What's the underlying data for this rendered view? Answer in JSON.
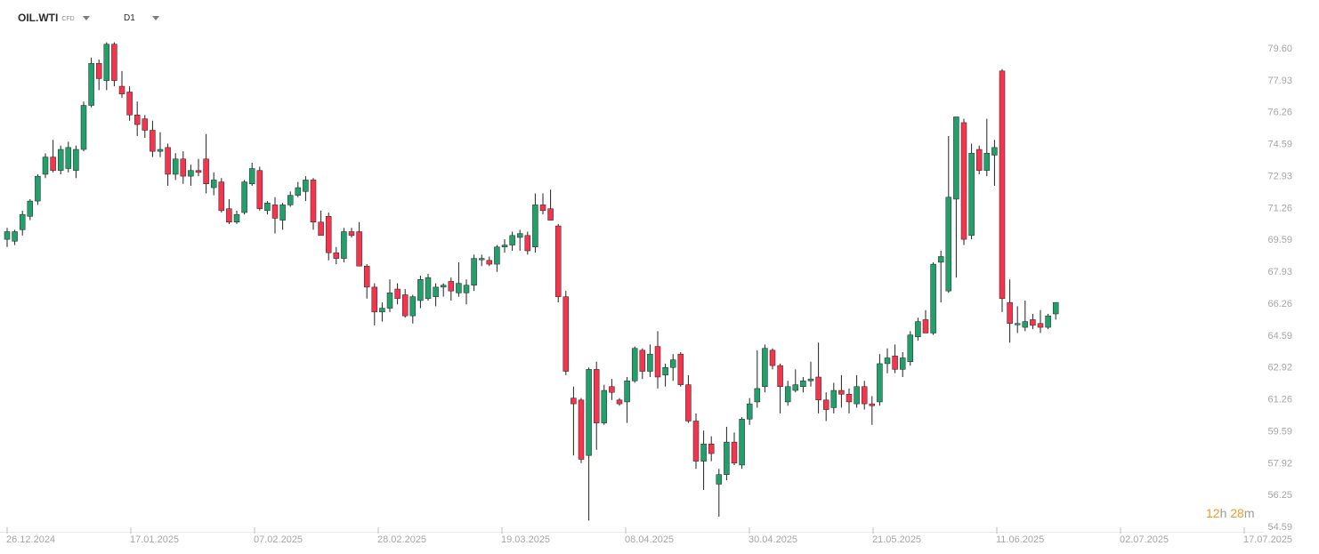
{
  "header": {
    "symbol": "OIL.WTI",
    "instrument_class": "CFD",
    "timeframe": "D1"
  },
  "countdown": {
    "hours": "12",
    "hours_unit": "h",
    "minutes": "28",
    "minutes_unit": "m"
  },
  "colors": {
    "up": "#22a06b",
    "down": "#f5344e",
    "axis_text": "#a6a6a6",
    "countdown": "#f29a2a"
  },
  "icons": [
    "symbol-dropdown-caret-icon",
    "timeframe-dropdown-caret-icon"
  ],
  "chart_data": {
    "type": "candlestick",
    "symbol": "OIL.WTI",
    "timeframe": "D1",
    "y_ticks": [
      "79.60",
      "77.93",
      "76.26",
      "74.59",
      "72.93",
      "71.26",
      "69.59",
      "67.93",
      "66.26",
      "64.59",
      "62.92",
      "61.26",
      "59.59",
      "57.92",
      "56.25",
      "54.59"
    ],
    "ylim": [
      54.59,
      79.6
    ],
    "x_ticks": [
      "26.12.2024",
      "17.01.2025",
      "07.02.2025",
      "28.02.2025",
      "19.03.2025",
      "08.04.2025",
      "30.04.2025",
      "21.05.2025",
      "11.06.2025",
      "02.07.2025",
      "17.07.2025"
    ],
    "candles": [
      {
        "o": 69.6,
        "h": 70.2,
        "l": 69.2,
        "c": 70.0
      },
      {
        "o": 69.5,
        "h": 70.1,
        "l": 69.3,
        "c": 70.0
      },
      {
        "o": 70.1,
        "h": 71.1,
        "l": 69.8,
        "c": 70.9
      },
      {
        "o": 70.8,
        "h": 71.7,
        "l": 70.6,
        "c": 71.6
      },
      {
        "o": 71.6,
        "h": 73.0,
        "l": 71.4,
        "c": 72.9
      },
      {
        "o": 73.0,
        "h": 74.1,
        "l": 72.8,
        "c": 73.9
      },
      {
        "o": 73.9,
        "h": 74.8,
        "l": 73.1,
        "c": 73.2
      },
      {
        "o": 73.2,
        "h": 74.5,
        "l": 73.0,
        "c": 74.3
      },
      {
        "o": 73.3,
        "h": 74.7,
        "l": 73.1,
        "c": 74.4
      },
      {
        "o": 73.2,
        "h": 74.5,
        "l": 72.8,
        "c": 74.3
      },
      {
        "o": 74.3,
        "h": 76.8,
        "l": 74.2,
        "c": 76.6
      },
      {
        "o": 76.6,
        "h": 79.1,
        "l": 76.5,
        "c": 78.8
      },
      {
        "o": 78.8,
        "h": 79.0,
        "l": 77.4,
        "c": 78.0
      },
      {
        "o": 77.9,
        "h": 79.9,
        "l": 77.4,
        "c": 79.8
      },
      {
        "o": 79.8,
        "h": 79.9,
        "l": 77.6,
        "c": 77.9
      },
      {
        "o": 77.6,
        "h": 78.4,
        "l": 77.0,
        "c": 77.2
      },
      {
        "o": 77.3,
        "h": 77.6,
        "l": 75.8,
        "c": 76.1
      },
      {
        "o": 76.1,
        "h": 76.8,
        "l": 75.0,
        "c": 75.6
      },
      {
        "o": 75.9,
        "h": 76.1,
        "l": 74.9,
        "c": 75.3
      },
      {
        "o": 75.3,
        "h": 75.8,
        "l": 73.9,
        "c": 74.2
      },
      {
        "o": 74.2,
        "h": 75.2,
        "l": 73.9,
        "c": 74.3
      },
      {
        "o": 74.4,
        "h": 74.6,
        "l": 72.4,
        "c": 73.0
      },
      {
        "o": 73.0,
        "h": 74.1,
        "l": 72.7,
        "c": 73.8
      },
      {
        "o": 73.8,
        "h": 74.2,
        "l": 72.5,
        "c": 72.9
      },
      {
        "o": 72.9,
        "h": 73.5,
        "l": 72.4,
        "c": 73.2
      },
      {
        "o": 73.2,
        "h": 73.8,
        "l": 72.9,
        "c": 73.1
      },
      {
        "o": 73.8,
        "h": 75.1,
        "l": 72.0,
        "c": 72.5
      },
      {
        "o": 72.3,
        "h": 73.1,
        "l": 71.9,
        "c": 72.7
      },
      {
        "o": 72.6,
        "h": 72.8,
        "l": 71.0,
        "c": 71.1
      },
      {
        "o": 71.2,
        "h": 71.7,
        "l": 70.4,
        "c": 70.5
      },
      {
        "o": 70.5,
        "h": 71.1,
        "l": 70.4,
        "c": 70.9
      },
      {
        "o": 71.0,
        "h": 72.7,
        "l": 70.9,
        "c": 72.6
      },
      {
        "o": 72.5,
        "h": 73.6,
        "l": 72.4,
        "c": 73.3
      },
      {
        "o": 73.2,
        "h": 73.4,
        "l": 71.1,
        "c": 71.2
      },
      {
        "o": 71.1,
        "h": 71.6,
        "l": 70.9,
        "c": 71.5
      },
      {
        "o": 71.4,
        "h": 71.8,
        "l": 69.9,
        "c": 70.7
      },
      {
        "o": 70.6,
        "h": 71.5,
        "l": 70.1,
        "c": 71.4
      },
      {
        "o": 71.4,
        "h": 72.1,
        "l": 71.3,
        "c": 71.9
      },
      {
        "o": 71.9,
        "h": 72.6,
        "l": 71.8,
        "c": 72.3
      },
      {
        "o": 72.1,
        "h": 72.9,
        "l": 71.6,
        "c": 72.7
      },
      {
        "o": 72.7,
        "h": 72.8,
        "l": 70.1,
        "c": 70.5
      },
      {
        "o": 70.5,
        "h": 71.1,
        "l": 69.8,
        "c": 69.8
      },
      {
        "o": 70.8,
        "h": 71.0,
        "l": 68.5,
        "c": 68.9
      },
      {
        "o": 68.9,
        "h": 69.2,
        "l": 68.3,
        "c": 68.6
      },
      {
        "o": 68.6,
        "h": 70.2,
        "l": 68.4,
        "c": 70.0
      },
      {
        "o": 70.0,
        "h": 70.2,
        "l": 69.7,
        "c": 69.8
      },
      {
        "o": 70.0,
        "h": 70.5,
        "l": 68.2,
        "c": 68.2
      },
      {
        "o": 68.2,
        "h": 68.3,
        "l": 66.5,
        "c": 67.1
      },
      {
        "o": 67.1,
        "h": 67.3,
        "l": 65.1,
        "c": 65.8
      },
      {
        "o": 65.8,
        "h": 66.3,
        "l": 65.3,
        "c": 66.0
      },
      {
        "o": 66.0,
        "h": 67.5,
        "l": 65.8,
        "c": 66.8
      },
      {
        "o": 67.0,
        "h": 67.3,
        "l": 66.2,
        "c": 66.5
      },
      {
        "o": 66.7,
        "h": 67.0,
        "l": 65.5,
        "c": 65.6
      },
      {
        "o": 65.6,
        "h": 66.7,
        "l": 65.2,
        "c": 66.6
      },
      {
        "o": 66.4,
        "h": 67.7,
        "l": 66.0,
        "c": 67.5
      },
      {
        "o": 66.5,
        "h": 67.8,
        "l": 66.4,
        "c": 67.6
      },
      {
        "o": 66.6,
        "h": 67.3,
        "l": 66.1,
        "c": 67.1
      },
      {
        "o": 67.1,
        "h": 67.3,
        "l": 66.6,
        "c": 67.2
      },
      {
        "o": 67.4,
        "h": 67.6,
        "l": 66.4,
        "c": 66.9
      },
      {
        "o": 66.8,
        "h": 68.4,
        "l": 66.6,
        "c": 67.3
      },
      {
        "o": 66.8,
        "h": 67.5,
        "l": 66.2,
        "c": 67.2
      },
      {
        "o": 67.2,
        "h": 68.8,
        "l": 66.9,
        "c": 68.6
      },
      {
        "o": 68.6,
        "h": 68.8,
        "l": 68.2,
        "c": 68.6
      },
      {
        "o": 68.5,
        "h": 68.7,
        "l": 68.2,
        "c": 68.3
      },
      {
        "o": 68.3,
        "h": 69.3,
        "l": 67.9,
        "c": 69.2
      },
      {
        "o": 69.2,
        "h": 69.6,
        "l": 68.9,
        "c": 69.3
      },
      {
        "o": 69.3,
        "h": 70.0,
        "l": 69.0,
        "c": 69.8
      },
      {
        "o": 69.7,
        "h": 70.1,
        "l": 69.0,
        "c": 69.9
      },
      {
        "o": 69.8,
        "h": 70.0,
        "l": 68.8,
        "c": 69.0
      },
      {
        "o": 69.2,
        "h": 72.0,
        "l": 68.9,
        "c": 71.4
      },
      {
        "o": 71.4,
        "h": 72.0,
        "l": 70.9,
        "c": 71.1
      },
      {
        "o": 71.2,
        "h": 72.2,
        "l": 70.6,
        "c": 70.6
      },
      {
        "o": 70.3,
        "h": 70.4,
        "l": 66.3,
        "c": 66.6
      },
      {
        "o": 66.6,
        "h": 66.9,
        "l": 62.5,
        "c": 62.7
      },
      {
        "o": 61.3,
        "h": 61.9,
        "l": 58.3,
        "c": 61.0
      },
      {
        "o": 61.2,
        "h": 61.3,
        "l": 57.9,
        "c": 58.1
      },
      {
        "o": 58.3,
        "h": 62.9,
        "l": 54.9,
        "c": 62.8
      },
      {
        "o": 62.8,
        "h": 63.2,
        "l": 58.6,
        "c": 60.0
      },
      {
        "o": 60.0,
        "h": 62.0,
        "l": 59.9,
        "c": 61.7
      },
      {
        "o": 61.9,
        "h": 62.3,
        "l": 61.2,
        "c": 61.6
      },
      {
        "o": 61.2,
        "h": 61.3,
        "l": 60.9,
        "c": 61.0
      },
      {
        "o": 61.1,
        "h": 62.4,
        "l": 60.0,
        "c": 62.2
      },
      {
        "o": 62.2,
        "h": 64.0,
        "l": 62.1,
        "c": 63.9
      },
      {
        "o": 63.8,
        "h": 63.9,
        "l": 62.3,
        "c": 62.7
      },
      {
        "o": 62.7,
        "h": 64.1,
        "l": 62.4,
        "c": 63.6
      },
      {
        "o": 64.0,
        "h": 64.8,
        "l": 61.8,
        "c": 62.4
      },
      {
        "o": 62.5,
        "h": 63.1,
        "l": 61.9,
        "c": 62.9
      },
      {
        "o": 62.9,
        "h": 63.6,
        "l": 62.2,
        "c": 63.3
      },
      {
        "o": 63.6,
        "h": 63.7,
        "l": 61.9,
        "c": 62.0
      },
      {
        "o": 62.0,
        "h": 62.5,
        "l": 60.0,
        "c": 60.1
      },
      {
        "o": 60.1,
        "h": 60.5,
        "l": 57.6,
        "c": 58.0
      },
      {
        "o": 58.0,
        "h": 59.6,
        "l": 56.5,
        "c": 58.9
      },
      {
        "o": 58.9,
        "h": 59.3,
        "l": 58.0,
        "c": 58.4
      },
      {
        "o": 56.8,
        "h": 57.6,
        "l": 55.1,
        "c": 57.3
      },
      {
        "o": 57.3,
        "h": 59.8,
        "l": 57.0,
        "c": 59.0
      },
      {
        "o": 59.0,
        "h": 59.5,
        "l": 57.8,
        "c": 57.9
      },
      {
        "o": 57.8,
        "h": 60.3,
        "l": 57.6,
        "c": 60.2
      },
      {
        "o": 60.2,
        "h": 61.3,
        "l": 59.9,
        "c": 61.0
      },
      {
        "o": 61.1,
        "h": 63.8,
        "l": 60.8,
        "c": 61.8
      },
      {
        "o": 61.9,
        "h": 64.1,
        "l": 61.6,
        "c": 63.9
      },
      {
        "o": 63.8,
        "h": 63.9,
        "l": 62.8,
        "c": 63.0
      },
      {
        "o": 63.0,
        "h": 63.1,
        "l": 60.5,
        "c": 61.9
      },
      {
        "o": 61.1,
        "h": 62.2,
        "l": 60.9,
        "c": 61.9
      },
      {
        "o": 61.7,
        "h": 62.8,
        "l": 61.6,
        "c": 62.0
      },
      {
        "o": 61.9,
        "h": 62.4,
        "l": 61.6,
        "c": 62.2
      },
      {
        "o": 62.2,
        "h": 63.2,
        "l": 61.9,
        "c": 62.3
      },
      {
        "o": 62.4,
        "h": 64.2,
        "l": 60.5,
        "c": 61.2
      },
      {
        "o": 61.2,
        "h": 61.6,
        "l": 60.1,
        "c": 60.7
      },
      {
        "o": 60.8,
        "h": 62.1,
        "l": 60.5,
        "c": 61.7
      },
      {
        "o": 61.7,
        "h": 62.5,
        "l": 60.8,
        "c": 61.5
      },
      {
        "o": 61.5,
        "h": 61.8,
        "l": 60.5,
        "c": 61.1
      },
      {
        "o": 61.0,
        "h": 62.5,
        "l": 60.8,
        "c": 61.9
      },
      {
        "o": 61.9,
        "h": 62.2,
        "l": 60.7,
        "c": 61.0
      },
      {
        "o": 61.0,
        "h": 61.4,
        "l": 59.9,
        "c": 60.9
      },
      {
        "o": 61.1,
        "h": 63.6,
        "l": 60.9,
        "c": 63.1
      },
      {
        "o": 63.1,
        "h": 63.9,
        "l": 62.6,
        "c": 63.4
      },
      {
        "o": 63.5,
        "h": 64.1,
        "l": 62.6,
        "c": 62.8
      },
      {
        "o": 62.8,
        "h": 63.7,
        "l": 62.4,
        "c": 63.4
      },
      {
        "o": 63.2,
        "h": 64.8,
        "l": 63.0,
        "c": 64.6
      },
      {
        "o": 64.5,
        "h": 65.5,
        "l": 64.3,
        "c": 65.3
      },
      {
        "o": 65.4,
        "h": 65.9,
        "l": 64.7,
        "c": 64.7
      },
      {
        "o": 64.7,
        "h": 68.4,
        "l": 64.6,
        "c": 68.3
      },
      {
        "o": 68.4,
        "h": 69.0,
        "l": 66.3,
        "c": 68.7
      },
      {
        "o": 66.9,
        "h": 75.0,
        "l": 66.8,
        "c": 71.8
      },
      {
        "o": 71.7,
        "h": 76.0,
        "l": 67.6,
        "c": 76.0
      },
      {
        "o": 75.7,
        "h": 75.9,
        "l": 69.3,
        "c": 69.6
      },
      {
        "o": 69.8,
        "h": 74.6,
        "l": 69.6,
        "c": 74.1
      },
      {
        "o": 74.3,
        "h": 74.5,
        "l": 73.0,
        "c": 73.2
      },
      {
        "o": 73.2,
        "h": 75.9,
        "l": 72.9,
        "c": 74.1
      },
      {
        "o": 74.0,
        "h": 74.8,
        "l": 72.4,
        "c": 74.4
      },
      {
        "o": 78.4,
        "h": 78.5,
        "l": 65.8,
        "c": 66.5
      },
      {
        "o": 66.3,
        "h": 67.5,
        "l": 64.2,
        "c": 65.2
      },
      {
        "o": 65.2,
        "h": 66.1,
        "l": 64.7,
        "c": 65.2
      },
      {
        "o": 65.0,
        "h": 66.4,
        "l": 64.8,
        "c": 65.3
      },
      {
        "o": 65.4,
        "h": 65.7,
        "l": 64.9,
        "c": 65.1
      },
      {
        "o": 65.2,
        "h": 65.9,
        "l": 64.7,
        "c": 65.0
      },
      {
        "o": 65.0,
        "h": 65.7,
        "l": 64.9,
        "c": 65.6
      },
      {
        "o": 65.7,
        "h": 66.3,
        "l": 65.4,
        "c": 66.3
      }
    ]
  }
}
